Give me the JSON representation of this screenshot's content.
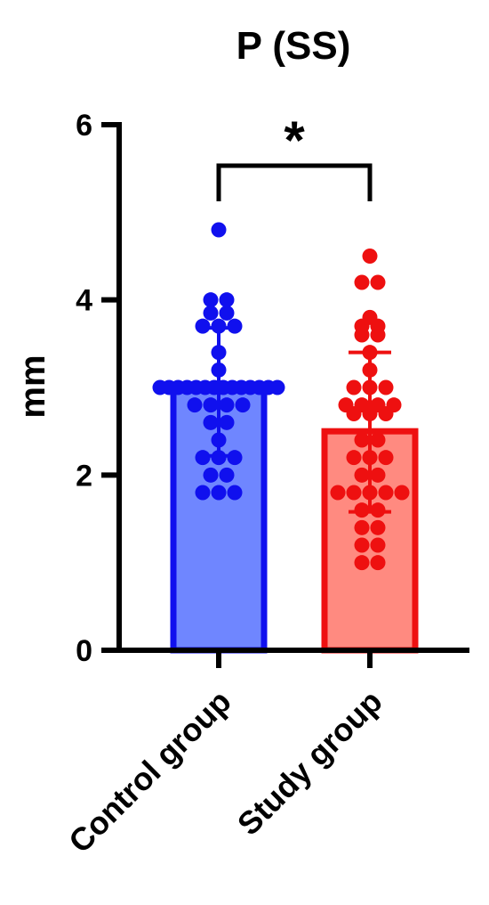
{
  "chart_data": {
    "type": "bar",
    "title": "P (SS)",
    "xlabel": "",
    "ylabel": "mm",
    "ylim": [
      0,
      6
    ],
    "yticks": [
      0,
      2,
      4,
      6
    ],
    "grid": false,
    "categories": [
      "Control group",
      "Study group"
    ],
    "values": [
      3.0,
      2.5
    ],
    "sd_upper": [
      3.68,
      3.4
    ],
    "sd_lower": [
      2.22,
      1.58
    ],
    "colors": {
      "fill": [
        "#6f86ff",
        "#ff8a80"
      ],
      "stroke": [
        "#1010ee",
        "#ee1010"
      ],
      "points": [
        "#1010ee",
        "#ee1010"
      ]
    },
    "significance": {
      "between": [
        0,
        1
      ],
      "label": "*"
    },
    "points": [
      [
        4.8,
        4.0,
        4.0,
        3.85,
        3.85,
        3.7,
        3.7,
        3.7,
        3.4,
        3.2,
        3.0,
        3.0,
        3.0,
        3.0,
        3.0,
        3.0,
        3.0,
        3.0,
        3.0,
        3.0,
        3.0,
        3.0,
        3.0,
        3.0,
        2.8,
        2.8,
        2.8,
        2.8,
        2.6,
        2.6,
        2.4,
        2.2,
        2.2,
        2.2,
        2.0,
        2.0,
        1.8,
        1.8,
        1.8
      ],
      [
        4.5,
        4.2,
        4.2,
        3.8,
        3.7,
        3.7,
        3.6,
        3.6,
        3.4,
        3.2,
        3.0,
        3.0,
        3.0,
        2.8,
        2.8,
        2.8,
        2.8,
        2.7,
        2.7,
        2.7,
        2.4,
        2.4,
        2.2,
        2.2,
        2.2,
        2.0,
        2.0,
        1.8,
        1.8,
        1.8,
        1.8,
        1.8,
        1.6,
        1.6,
        1.4,
        1.4,
        1.2,
        1.2,
        1.0,
        1.0
      ]
    ]
  }
}
